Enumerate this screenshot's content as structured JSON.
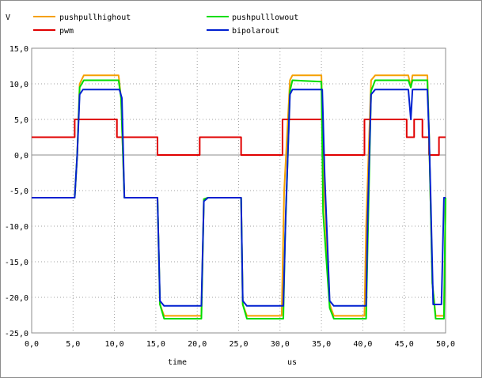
{
  "chart_data": {
    "type": "line",
    "title": "",
    "y_unit_label": "V",
    "xlabel": "time",
    "x_unit_label": "us",
    "xlim": [
      0,
      50
    ],
    "ylim": [
      -25,
      15
    ],
    "x_ticks": [
      "0,0",
      "5,0",
      "10,0",
      "15,0",
      "20,0",
      "25,0",
      "30,0",
      "35,0",
      "40,0",
      "45,0",
      "50,0"
    ],
    "y_ticks": [
      "15,0",
      "10,0",
      "5,0",
      "0,0",
      "-5,0",
      "-10,0",
      "-15,0",
      "-20,0",
      "-25,0"
    ],
    "x_tick_values": [
      0,
      5,
      10,
      15,
      20,
      25,
      30,
      35,
      40,
      45,
      50
    ],
    "y_tick_values": [
      15,
      10,
      5,
      0,
      -5,
      -10,
      -15,
      -20,
      -25
    ],
    "grid": "dotted",
    "legend_position": "top",
    "series": [
      {
        "name": "pushpullhighout",
        "color": "#f5a000",
        "points": [
          [
            0,
            -6
          ],
          [
            5.2,
            -6
          ],
          [
            5.5,
            0
          ],
          [
            5.8,
            10
          ],
          [
            6.3,
            11.2
          ],
          [
            10.5,
            11.2
          ],
          [
            10.8,
            8
          ],
          [
            11.2,
            -6
          ],
          [
            15.2,
            -6
          ],
          [
            15.5,
            -21
          ],
          [
            16,
            -22.6
          ],
          [
            20.5,
            -22.6
          ],
          [
            20.8,
            -6.2
          ],
          [
            21.3,
            -6
          ],
          [
            25.3,
            -6
          ],
          [
            25.5,
            -21
          ],
          [
            26,
            -22.6
          ],
          [
            30.2,
            -22.6
          ],
          [
            30.5,
            -5
          ],
          [
            31.2,
            10.5
          ],
          [
            31.5,
            11.2
          ],
          [
            35,
            11.2
          ],
          [
            35.3,
            -4
          ],
          [
            36,
            -21
          ],
          [
            36.5,
            -22.6
          ],
          [
            40.2,
            -22.6
          ],
          [
            40.4,
            -10
          ],
          [
            41,
            10.5
          ],
          [
            41.5,
            11.2
          ],
          [
            45.5,
            11.2
          ],
          [
            45.8,
            9.5
          ],
          [
            46,
            11.2
          ],
          [
            47.8,
            11.2
          ],
          [
            48,
            3
          ],
          [
            48.4,
            -18
          ],
          [
            48.8,
            -22.6
          ],
          [
            49.8,
            -22.6
          ],
          [
            50,
            -6
          ]
        ]
      },
      {
        "name": "pwm",
        "color": "#e00000",
        "points": [
          [
            0,
            2.5
          ],
          [
            5.2,
            2.5
          ],
          [
            5.2,
            5
          ],
          [
            10.3,
            5
          ],
          [
            10.3,
            2.5
          ],
          [
            15.2,
            2.5
          ],
          [
            15.2,
            0
          ],
          [
            20.3,
            0
          ],
          [
            20.3,
            2.5
          ],
          [
            25.3,
            2.5
          ],
          [
            25.3,
            0
          ],
          [
            30.3,
            0
          ],
          [
            30.3,
            5
          ],
          [
            35.2,
            5
          ],
          [
            35.2,
            0
          ],
          [
            40.2,
            0
          ],
          [
            40.2,
            5
          ],
          [
            45.3,
            5
          ],
          [
            45.3,
            2.5
          ],
          [
            46.2,
            2.5
          ],
          [
            46.2,
            5
          ],
          [
            47.2,
            5
          ],
          [
            47.2,
            2.5
          ],
          [
            48,
            2.5
          ],
          [
            48,
            0
          ],
          [
            49.2,
            0
          ],
          [
            49.2,
            2.5
          ],
          [
            50,
            2.5
          ]
        ]
      },
      {
        "name": "pushpulllowout",
        "color": "#00dd00",
        "points": [
          [
            0,
            -6
          ],
          [
            5.2,
            -6
          ],
          [
            5.5,
            0
          ],
          [
            5.8,
            9.5
          ],
          [
            6.3,
            10.5
          ],
          [
            10.5,
            10.5
          ],
          [
            10.8,
            8
          ],
          [
            11.2,
            -6
          ],
          [
            15.2,
            -6
          ],
          [
            15.5,
            -21
          ],
          [
            16,
            -23
          ],
          [
            20.5,
            -23
          ],
          [
            20.8,
            -6.2
          ],
          [
            21.3,
            -6
          ],
          [
            25.3,
            -6
          ],
          [
            25.5,
            -21
          ],
          [
            26,
            -23
          ],
          [
            30.4,
            -23
          ],
          [
            30.6,
            -12
          ],
          [
            31.2,
            9
          ],
          [
            31.5,
            10.5
          ],
          [
            35,
            10.3
          ],
          [
            35.2,
            -8
          ],
          [
            36,
            -21.5
          ],
          [
            36.5,
            -23
          ],
          [
            40.4,
            -23
          ],
          [
            40.6,
            -12
          ],
          [
            41,
            9
          ],
          [
            41.5,
            10.5
          ],
          [
            45.5,
            10.5
          ],
          [
            45.8,
            9.5
          ],
          [
            46,
            10.5
          ],
          [
            47.8,
            10.5
          ],
          [
            48,
            3
          ],
          [
            48.4,
            -18
          ],
          [
            48.8,
            -23
          ],
          [
            49.8,
            -23
          ],
          [
            50,
            -6
          ]
        ]
      },
      {
        "name": "bipolarout",
        "color": "#0020d0",
        "points": [
          [
            0,
            -6
          ],
          [
            5.2,
            -6
          ],
          [
            5.5,
            0
          ],
          [
            5.8,
            8.5
          ],
          [
            6.2,
            9.2
          ],
          [
            10.6,
            9.2
          ],
          [
            10.9,
            8
          ],
          [
            11.2,
            -6
          ],
          [
            15.2,
            -6
          ],
          [
            15.5,
            -20.5
          ],
          [
            16,
            -21.2
          ],
          [
            20.5,
            -21.2
          ],
          [
            20.8,
            -6.5
          ],
          [
            21.3,
            -6
          ],
          [
            25.3,
            -6
          ],
          [
            25.5,
            -20.5
          ],
          [
            26,
            -21.2
          ],
          [
            30.4,
            -21.2
          ],
          [
            30.7,
            -8
          ],
          [
            31.2,
            8.5
          ],
          [
            31.5,
            9.2
          ],
          [
            35.1,
            9.2
          ],
          [
            35.4,
            -3
          ],
          [
            36,
            -20.5
          ],
          [
            36.5,
            -21.2
          ],
          [
            40.4,
            -21.2
          ],
          [
            40.6,
            -8
          ],
          [
            41,
            8.5
          ],
          [
            41.5,
            9.2
          ],
          [
            45.5,
            9.2
          ],
          [
            45.8,
            5
          ],
          [
            46,
            9.2
          ],
          [
            47.8,
            9.2
          ],
          [
            48,
            3
          ],
          [
            48.2,
            -6
          ],
          [
            48.5,
            -21
          ],
          [
            49.5,
            -21
          ],
          [
            49.8,
            -6
          ],
          [
            50,
            -6
          ]
        ]
      }
    ]
  }
}
